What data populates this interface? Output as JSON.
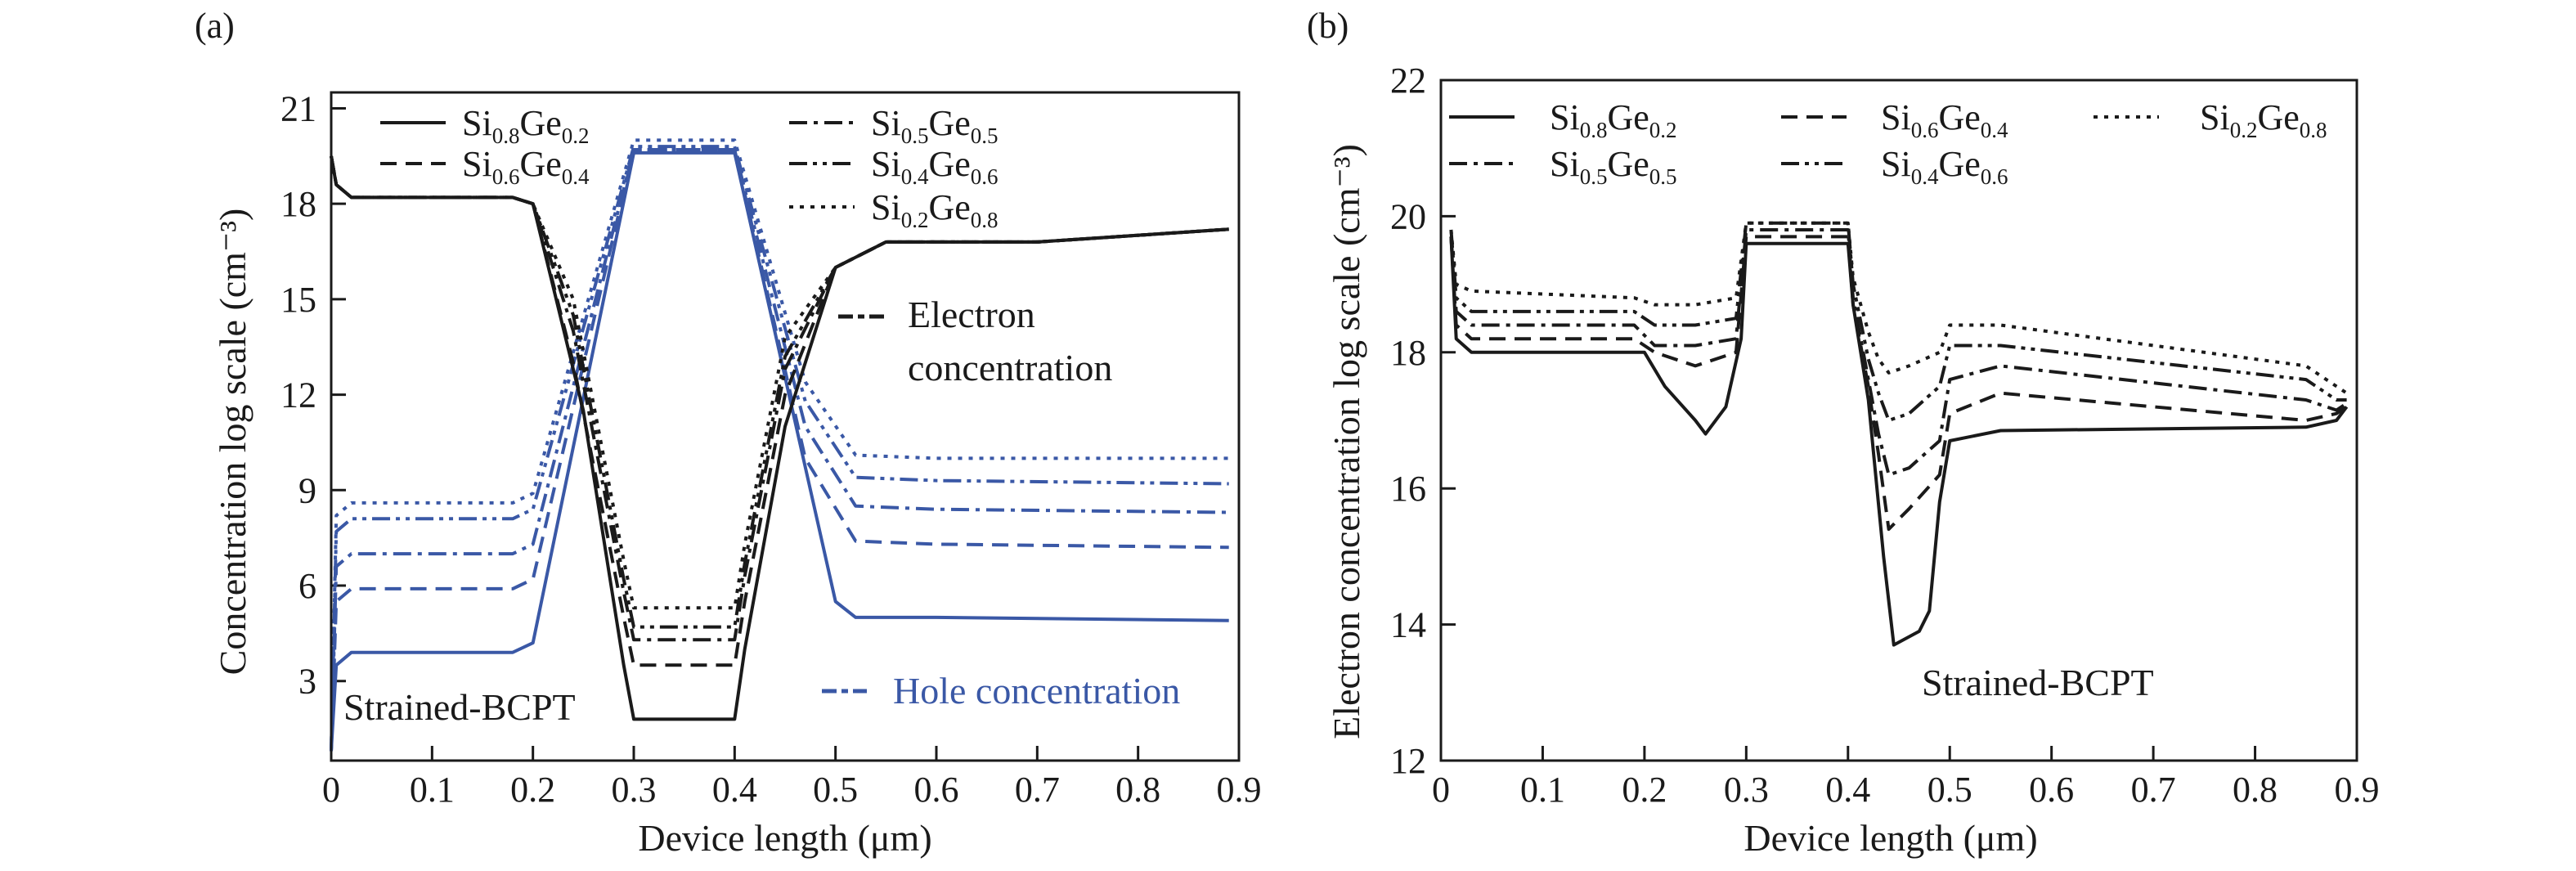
{
  "colors": {
    "black": "#1a1a1a",
    "blue": "#3a58a6"
  },
  "chart_data": [
    {
      "panel_label": "(a)",
      "type": "line",
      "xlabel": "Device length (μm)",
      "ylabel": "Concentration log scale (cm⁻³)",
      "xlim": [
        0,
        0.9
      ],
      "ylim": [
        0.5,
        21.5
      ],
      "xticks": [
        "0",
        "0.1",
        "0.2",
        "0.3",
        "0.4",
        "0.5",
        "0.6",
        "0.7",
        "0.8",
        "0.9"
      ],
      "yticks": [
        "3",
        "6",
        "9",
        "12",
        "15",
        "18",
        "21"
      ],
      "ytick_values": [
        3,
        6,
        9,
        12,
        15,
        18,
        21
      ],
      "legend": [
        {
          "base1": "Si",
          "sub1": "0.8",
          "base2": "Ge",
          "sub2": "0.2",
          "dash": "solid"
        },
        {
          "base1": "Si",
          "sub1": "0.6",
          "base2": "Ge",
          "sub2": "0.4",
          "dash": "dashed"
        },
        {
          "base1": "Si",
          "sub1": "0.5",
          "base2": "Ge",
          "sub2": "0.5",
          "dash": "dashdot"
        },
        {
          "base1": "Si",
          "sub1": "0.4",
          "base2": "Ge",
          "sub2": "0.6",
          "dash": "dashdotdot"
        },
        {
          "base1": "Si",
          "sub1": "0.2",
          "base2": "Ge",
          "sub2": "0.8",
          "dash": "dotted"
        }
      ],
      "annotations": {
        "electron_line1": "Electron",
        "electron_line2": "concentration",
        "hole": "Hole concentration",
        "device": "Strained-BCPT"
      },
      "electron_series": [
        {
          "dash": "solid",
          "x": [
            0,
            0.005,
            0.02,
            0.18,
            0.2,
            0.25,
            0.29,
            0.3,
            0.4,
            0.41,
            0.45,
            0.5,
            0.55,
            0.7,
            0.89
          ],
          "y": [
            19.5,
            18.6,
            18.2,
            18.2,
            18.0,
            11.5,
            3.5,
            1.8,
            1.8,
            4.0,
            11.0,
            16.0,
            16.8,
            16.8,
            17.2
          ]
        },
        {
          "dash": "dashed",
          "x": [
            0,
            0.005,
            0.02,
            0.18,
            0.2,
            0.24,
            0.29,
            0.3,
            0.4,
            0.41,
            0.45,
            0.5,
            0.55,
            0.7,
            0.89
          ],
          "y": [
            19.5,
            18.6,
            18.2,
            18.2,
            18.0,
            13.0,
            5.0,
            3.5,
            3.5,
            5.5,
            12.0,
            16.0,
            16.8,
            16.8,
            17.2
          ]
        },
        {
          "dash": "dashdot",
          "x": [
            0,
            0.005,
            0.02,
            0.18,
            0.2,
            0.24,
            0.29,
            0.3,
            0.4,
            0.41,
            0.45,
            0.5,
            0.55,
            0.7,
            0.89
          ],
          "y": [
            19.5,
            18.6,
            18.2,
            18.2,
            18.0,
            14.0,
            5.8,
            4.3,
            4.3,
            6.3,
            12.8,
            16.0,
            16.8,
            16.8,
            17.2
          ]
        },
        {
          "dash": "dashdotdot",
          "x": [
            0,
            0.005,
            0.02,
            0.18,
            0.2,
            0.24,
            0.29,
            0.3,
            0.4,
            0.41,
            0.45,
            0.5,
            0.55,
            0.7,
            0.89
          ],
          "y": [
            19.5,
            18.6,
            18.2,
            18.2,
            18.0,
            14.5,
            6.2,
            4.7,
            4.7,
            6.7,
            13.2,
            16.0,
            16.8,
            16.8,
            17.2
          ]
        },
        {
          "dash": "dotted",
          "x": [
            0,
            0.005,
            0.02,
            0.18,
            0.2,
            0.24,
            0.29,
            0.3,
            0.4,
            0.41,
            0.45,
            0.5,
            0.55,
            0.7,
            0.89
          ],
          "y": [
            19.5,
            18.6,
            18.2,
            18.2,
            18.0,
            15.0,
            6.8,
            5.3,
            5.3,
            7.3,
            13.8,
            16.0,
            16.8,
            16.8,
            17.2
          ]
        }
      ],
      "hole_series": [
        {
          "dash": "solid",
          "x": [
            0,
            0.005,
            0.02,
            0.18,
            0.2,
            0.3,
            0.4,
            0.5,
            0.52,
            0.6,
            0.89
          ],
          "y": [
            0.8,
            3.5,
            3.9,
            3.9,
            4.2,
            19.6,
            19.6,
            5.5,
            5.0,
            5.0,
            4.9
          ]
        },
        {
          "dash": "dashed",
          "x": [
            0,
            0.005,
            0.02,
            0.18,
            0.2,
            0.3,
            0.4,
            0.47,
            0.52,
            0.6,
            0.89
          ],
          "y": [
            0.8,
            5.5,
            5.9,
            5.9,
            6.2,
            19.7,
            19.7,
            10.0,
            7.4,
            7.3,
            7.2
          ]
        },
        {
          "dash": "dashdot",
          "x": [
            0,
            0.005,
            0.02,
            0.18,
            0.2,
            0.3,
            0.4,
            0.47,
            0.52,
            0.6,
            0.89
          ],
          "y": [
            0.8,
            6.6,
            7.0,
            7.0,
            7.3,
            19.7,
            19.7,
            11.0,
            8.5,
            8.4,
            8.3
          ]
        },
        {
          "dash": "dashdotdot",
          "x": [
            0,
            0.005,
            0.02,
            0.18,
            0.2,
            0.3,
            0.4,
            0.47,
            0.52,
            0.6,
            0.89
          ],
          "y": [
            0.8,
            7.7,
            8.1,
            8.1,
            8.4,
            19.8,
            19.8,
            11.8,
            9.4,
            9.3,
            9.2
          ]
        },
        {
          "dash": "dotted",
          "x": [
            0,
            0.005,
            0.02,
            0.18,
            0.2,
            0.3,
            0.4,
            0.47,
            0.52,
            0.6,
            0.89
          ],
          "y": [
            0.8,
            8.2,
            8.6,
            8.6,
            8.9,
            20.0,
            20.0,
            12.4,
            10.1,
            10.0,
            10.0
          ]
        }
      ]
    },
    {
      "panel_label": "(b)",
      "type": "line",
      "xlabel": "Device length (μm)",
      "ylabel": "Electron concentration log scale (cm⁻³)",
      "xlim": [
        0,
        0.9
      ],
      "ylim": [
        12,
        22
      ],
      "xticks": [
        "0",
        "0.1",
        "0.2",
        "0.3",
        "0.4",
        "0.5",
        "0.6",
        "0.7",
        "0.8",
        "0.9"
      ],
      "yticks": [
        "12",
        "14",
        "16",
        "18",
        "20",
        "22"
      ],
      "ytick_values": [
        12,
        14,
        16,
        18,
        20,
        22
      ],
      "legend": [
        {
          "base1": "Si",
          "sub1": "0.8",
          "base2": "Ge",
          "sub2": "0.2",
          "dash": "solid"
        },
        {
          "base1": "Si",
          "sub1": "0.6",
          "base2": "Ge",
          "sub2": "0.4",
          "dash": "dashed"
        },
        {
          "base1": "Si",
          "sub1": "0.2",
          "base2": "Ge",
          "sub2": "0.8",
          "dash": "dotted"
        },
        {
          "base1": "Si",
          "sub1": "0.5",
          "base2": "Ge",
          "sub2": "0.5",
          "dash": "dashdot"
        },
        {
          "base1": "Si",
          "sub1": "0.4",
          "base2": "Ge",
          "sub2": "0.6",
          "dash": "dashdotdot"
        }
      ],
      "annotations": {
        "device": "Strained-BCPT"
      },
      "series": [
        {
          "dash": "solid",
          "x": [
            0.01,
            0.015,
            0.03,
            0.19,
            0.2,
            0.22,
            0.25,
            0.26,
            0.28,
            0.295,
            0.3,
            0.4,
            0.405,
            0.42,
            0.435,
            0.445,
            0.47,
            0.48,
            0.49,
            0.5,
            0.55,
            0.85,
            0.88,
            0.89
          ],
          "y": [
            19.7,
            18.2,
            18.0,
            18.0,
            18.0,
            17.5,
            17.0,
            16.8,
            17.2,
            18.2,
            19.6,
            19.6,
            18.7,
            17.3,
            15.0,
            13.7,
            13.9,
            14.2,
            15.8,
            16.7,
            16.85,
            16.9,
            17.0,
            17.2
          ]
        },
        {
          "dash": "dashed",
          "x": [
            0.01,
            0.015,
            0.03,
            0.19,
            0.21,
            0.25,
            0.29,
            0.3,
            0.4,
            0.405,
            0.42,
            0.43,
            0.44,
            0.46,
            0.49,
            0.5,
            0.55,
            0.85,
            0.88,
            0.89
          ],
          "y": [
            19.7,
            18.4,
            18.2,
            18.2,
            18.0,
            17.8,
            18.0,
            19.7,
            19.7,
            18.7,
            17.5,
            16.5,
            15.4,
            15.7,
            16.2,
            17.1,
            17.4,
            17.0,
            17.1,
            17.2
          ]
        },
        {
          "dash": "dashdot",
          "x": [
            0.01,
            0.015,
            0.03,
            0.19,
            0.21,
            0.25,
            0.29,
            0.3,
            0.4,
            0.405,
            0.42,
            0.43,
            0.44,
            0.46,
            0.49,
            0.5,
            0.55,
            0.85,
            0.88,
            0.89
          ],
          "y": [
            19.7,
            18.6,
            18.4,
            18.4,
            18.1,
            18.1,
            18.2,
            19.8,
            19.8,
            18.8,
            17.6,
            16.8,
            16.2,
            16.3,
            16.7,
            17.6,
            17.8,
            17.3,
            17.15,
            17.25
          ]
        },
        {
          "dash": "dashdotdot",
          "x": [
            0.01,
            0.015,
            0.03,
            0.19,
            0.21,
            0.25,
            0.29,
            0.3,
            0.4,
            0.405,
            0.42,
            0.43,
            0.44,
            0.46,
            0.49,
            0.5,
            0.55,
            0.85,
            0.88,
            0.89
          ],
          "y": [
            19.8,
            18.8,
            18.6,
            18.6,
            18.4,
            18.4,
            18.5,
            19.9,
            19.9,
            19.0,
            17.9,
            17.4,
            17.0,
            17.1,
            17.5,
            18.1,
            18.1,
            17.6,
            17.3,
            17.3
          ]
        },
        {
          "dash": "dotted",
          "x": [
            0.01,
            0.015,
            0.03,
            0.19,
            0.21,
            0.25,
            0.29,
            0.3,
            0.4,
            0.405,
            0.42,
            0.43,
            0.44,
            0.46,
            0.49,
            0.5,
            0.55,
            0.85,
            0.88,
            0.89
          ],
          "y": [
            19.8,
            19.0,
            18.9,
            18.8,
            18.7,
            18.7,
            18.8,
            19.9,
            19.9,
            19.1,
            18.3,
            17.9,
            17.7,
            17.8,
            18.0,
            18.4,
            18.4,
            17.8,
            17.5,
            17.4
          ]
        }
      ]
    }
  ]
}
